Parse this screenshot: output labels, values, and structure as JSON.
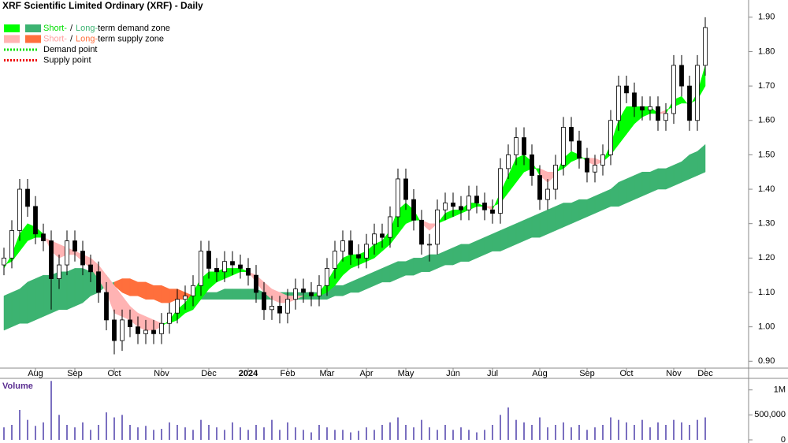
{
  "chart_data": {
    "type": "candlestick",
    "title": "XRF Scientific Limited Ordinary (XRF) - Daily",
    "legend": [
      {
        "kind": "zone",
        "swatches": [
          "#00ff00",
          "#3cb371"
        ],
        "parts": [
          {
            "text": "Short-",
            "color": "#00dd00"
          },
          {
            "text": "/"
          },
          {
            "text": "Long-",
            "color": "#3cb371"
          },
          {
            "text": "term demand zone"
          }
        ]
      },
      {
        "kind": "zone",
        "swatches": [
          "#ffb3b3",
          "#ff6f3c"
        ],
        "parts": [
          {
            "text": "Short-",
            "color": "#ffa0a0"
          },
          {
            "text": "/"
          },
          {
            "text": "Long-",
            "color": "#ff6f3c"
          },
          {
            "text": "term supply zone"
          }
        ]
      },
      {
        "kind": "point",
        "swatches": [
          "#00dd00"
        ],
        "parts": [
          {
            "text": "Demand point"
          }
        ]
      },
      {
        "kind": "point",
        "swatches": [
          "#ee0000"
        ],
        "parts": [
          {
            "text": "Supply point"
          }
        ]
      }
    ],
    "categories": [
      null,
      null,
      null,
      null,
      "Aug",
      null,
      null,
      null,
      null,
      "Sep",
      null,
      null,
      null,
      null,
      "Oct",
      null,
      null,
      null,
      null,
      null,
      "Nov",
      null,
      null,
      null,
      null,
      null,
      "Dec",
      null,
      null,
      null,
      null,
      "2024",
      null,
      null,
      null,
      null,
      "Feb",
      null,
      null,
      null,
      null,
      "Mar",
      null,
      null,
      null,
      null,
      "Apr",
      null,
      null,
      null,
      null,
      "May",
      null,
      null,
      null,
      null,
      null,
      "Jun",
      null,
      null,
      null,
      null,
      "Jul",
      null,
      null,
      null,
      null,
      null,
      "Aug",
      null,
      null,
      null,
      null,
      null,
      "Sep",
      null,
      null,
      null,
      null,
      "Oct",
      null,
      null,
      null,
      null,
      null,
      "Nov",
      null,
      null,
      null,
      "Dec"
    ],
    "open": [
      1.18,
      1.2,
      1.28,
      1.4,
      1.35,
      1.27,
      1.25,
      1.14,
      1.18,
      1.25,
      1.22,
      1.18,
      1.16,
      1.1,
      1.02,
      0.96,
      1.02,
      1.0,
      0.98,
      0.99,
      0.98,
      1.01,
      1.04,
      1.08,
      1.09,
      1.12,
      1.22,
      1.17,
      1.16,
      1.19,
      1.18,
      1.17,
      1.15,
      1.1,
      1.05,
      1.06,
      1.04,
      1.08,
      1.11,
      1.1,
      1.09,
      1.12,
      1.17,
      1.22,
      1.25,
      1.21,
      1.2,
      1.24,
      1.27,
      1.26,
      1.32,
      1.43,
      1.37,
      1.31,
      1.24,
      1.24,
      1.34,
      1.36,
      1.35,
      1.34,
      1.38,
      1.36,
      1.34,
      1.33,
      1.46,
      1.5,
      1.55,
      1.5,
      1.44,
      1.37,
      1.4,
      1.47,
      1.58,
      1.54,
      1.49,
      1.45,
      1.47,
      1.5,
      1.6,
      1.7,
      1.68,
      1.64,
      1.63,
      1.64,
      1.6,
      1.62,
      1.76,
      1.7,
      1.6,
      1.76
    ],
    "high": [
      1.23,
      1.31,
      1.43,
      1.43,
      1.38,
      1.3,
      1.28,
      1.21,
      1.28,
      1.28,
      1.25,
      1.21,
      1.19,
      1.13,
      1.05,
      1.05,
      1.05,
      1.03,
      1.02,
      1.02,
      1.04,
      1.07,
      1.11,
      1.12,
      1.15,
      1.25,
      1.25,
      1.2,
      1.22,
      1.22,
      1.21,
      1.2,
      1.18,
      1.13,
      1.09,
      1.09,
      1.11,
      1.14,
      1.14,
      1.13,
      1.15,
      1.2,
      1.25,
      1.28,
      1.28,
      1.24,
      1.27,
      1.3,
      1.3,
      1.35,
      1.46,
      1.46,
      1.4,
      1.34,
      1.27,
      1.37,
      1.39,
      1.39,
      1.38,
      1.41,
      1.41,
      1.39,
      1.37,
      1.49,
      1.53,
      1.58,
      1.58,
      1.53,
      1.47,
      1.43,
      1.5,
      1.61,
      1.61,
      1.57,
      1.52,
      1.5,
      1.53,
      1.63,
      1.73,
      1.73,
      1.71,
      1.67,
      1.67,
      1.67,
      1.65,
      1.79,
      1.79,
      1.73,
      1.79,
      1.9
    ],
    "low": [
      1.15,
      1.17,
      1.25,
      1.32,
      1.24,
      1.22,
      1.05,
      1.11,
      1.15,
      1.19,
      1.15,
      1.13,
      1.07,
      0.99,
      0.92,
      0.93,
      0.97,
      0.95,
      0.95,
      0.95,
      0.95,
      0.98,
      1.01,
      1.05,
      1.06,
      1.09,
      1.14,
      1.13,
      1.13,
      1.15,
      1.14,
      1.12,
      1.07,
      1.02,
      1.02,
      1.01,
      1.01,
      1.05,
      1.07,
      1.06,
      1.06,
      1.09,
      1.14,
      1.19,
      1.18,
      1.17,
      1.17,
      1.21,
      1.23,
      1.23,
      1.29,
      1.34,
      1.28,
      1.21,
      1.19,
      1.21,
      1.31,
      1.32,
      1.31,
      1.31,
      1.33,
      1.31,
      1.3,
      1.3,
      1.43,
      1.47,
      1.47,
      1.41,
      1.34,
      1.34,
      1.37,
      1.44,
      1.51,
      1.46,
      1.42,
      1.42,
      1.44,
      1.47,
      1.57,
      1.65,
      1.61,
      1.6,
      1.6,
      1.57,
      1.57,
      1.59,
      1.67,
      1.57,
      1.57,
      1.73
    ],
    "close": [
      1.2,
      1.28,
      1.4,
      1.35,
      1.27,
      1.25,
      1.14,
      1.18,
      1.25,
      1.22,
      1.18,
      1.16,
      1.1,
      1.02,
      0.96,
      1.02,
      1.0,
      0.98,
      0.99,
      0.98,
      1.01,
      1.04,
      1.08,
      1.09,
      1.12,
      1.22,
      1.17,
      1.16,
      1.19,
      1.18,
      1.17,
      1.15,
      1.1,
      1.05,
      1.06,
      1.04,
      1.08,
      1.11,
      1.1,
      1.09,
      1.12,
      1.17,
      1.22,
      1.25,
      1.21,
      1.2,
      1.24,
      1.27,
      1.26,
      1.32,
      1.43,
      1.37,
      1.31,
      1.24,
      1.24,
      1.34,
      1.36,
      1.35,
      1.34,
      1.38,
      1.36,
      1.34,
      1.33,
      1.46,
      1.5,
      1.55,
      1.5,
      1.44,
      1.37,
      1.4,
      1.47,
      1.58,
      1.54,
      1.49,
      1.45,
      1.47,
      1.5,
      1.6,
      1.7,
      1.68,
      1.64,
      1.63,
      1.64,
      1.6,
      1.62,
      1.76,
      1.7,
      1.6,
      1.76,
      1.87
    ],
    "zones": {
      "long": {
        "demand_color": "#3cb371",
        "supply_color": "#ff6f3c",
        "fast": [
          1.09,
          1.1,
          1.11,
          1.13,
          1.14,
          1.15,
          1.15,
          1.16,
          1.16,
          1.17,
          1.17,
          1.16,
          1.16,
          1.15,
          1.12,
          1.1,
          1.09,
          1.09,
          1.08,
          1.08,
          1.07,
          1.07,
          1.08,
          1.08,
          1.09,
          1.1,
          1.1,
          1.1,
          1.11,
          1.11,
          1.11,
          1.11,
          1.11,
          1.1,
          1.1,
          1.1,
          1.1,
          1.1,
          1.1,
          1.1,
          1.1,
          1.11,
          1.12,
          1.12,
          1.13,
          1.14,
          1.15,
          1.16,
          1.17,
          1.18,
          1.19,
          1.19,
          1.2,
          1.2,
          1.21,
          1.21,
          1.22,
          1.23,
          1.24,
          1.24,
          1.25,
          1.26,
          1.27,
          1.28,
          1.29,
          1.3,
          1.31,
          1.32,
          1.33,
          1.34,
          1.35,
          1.36,
          1.36,
          1.37,
          1.37,
          1.38,
          1.39,
          1.4,
          1.42,
          1.43,
          1.44,
          1.45,
          1.45,
          1.46,
          1.46,
          1.47,
          1.48,
          1.5,
          1.51,
          1.53
        ],
        "slow": [
          0.99,
          1.0,
          1.01,
          1.01,
          1.02,
          1.03,
          1.04,
          1.05,
          1.05,
          1.06,
          1.07,
          1.09,
          1.1,
          1.12,
          1.13,
          1.14,
          1.14,
          1.13,
          1.13,
          1.12,
          1.12,
          1.11,
          1.11,
          1.1,
          1.09,
          1.08,
          1.08,
          1.08,
          1.08,
          1.08,
          1.08,
          1.08,
          1.08,
          1.08,
          1.08,
          1.08,
          1.08,
          1.08,
          1.08,
          1.08,
          1.08,
          1.08,
          1.09,
          1.09,
          1.1,
          1.1,
          1.11,
          1.12,
          1.13,
          1.13,
          1.14,
          1.15,
          1.15,
          1.16,
          1.16,
          1.17,
          1.18,
          1.18,
          1.19,
          1.19,
          1.2,
          1.21,
          1.22,
          1.22,
          1.23,
          1.24,
          1.25,
          1.26,
          1.26,
          1.27,
          1.28,
          1.29,
          1.3,
          1.31,
          1.32,
          1.33,
          1.34,
          1.35,
          1.35,
          1.36,
          1.37,
          1.38,
          1.39,
          1.4,
          1.4,
          1.41,
          1.42,
          1.43,
          1.44,
          1.45
        ]
      },
      "short": {
        "demand_color": "#00ff00",
        "supply_color": "#ffb3b3",
        "fast": [
          1.17,
          1.21,
          1.27,
          1.3,
          1.29,
          1.27,
          1.22,
          1.2,
          1.21,
          1.21,
          1.19,
          1.17,
          1.14,
          1.1,
          1.04,
          1.03,
          1.02,
          1.0,
          0.99,
          0.99,
          1.0,
          1.02,
          1.05,
          1.07,
          1.1,
          1.14,
          1.16,
          1.16,
          1.17,
          1.17,
          1.17,
          1.16,
          1.13,
          1.1,
          1.08,
          1.07,
          1.07,
          1.08,
          1.09,
          1.09,
          1.1,
          1.13,
          1.17,
          1.2,
          1.21,
          1.21,
          1.22,
          1.24,
          1.25,
          1.28,
          1.34,
          1.36,
          1.34,
          1.3,
          1.28,
          1.3,
          1.33,
          1.34,
          1.34,
          1.36,
          1.36,
          1.35,
          1.34,
          1.39,
          1.44,
          1.49,
          1.5,
          1.48,
          1.44,
          1.42,
          1.44,
          1.49,
          1.51,
          1.5,
          1.48,
          1.47,
          1.48,
          1.53,
          1.6,
          1.64,
          1.64,
          1.64,
          1.64,
          1.62,
          1.62,
          1.66,
          1.67,
          1.64,
          1.68,
          1.76
        ],
        "slow": [
          1.18,
          1.19,
          1.22,
          1.25,
          1.26,
          1.26,
          1.25,
          1.24,
          1.23,
          1.22,
          1.21,
          1.2,
          1.18,
          1.15,
          1.12,
          1.09,
          1.06,
          1.04,
          1.03,
          1.02,
          1.01,
          1.01,
          1.02,
          1.04,
          1.05,
          1.08,
          1.11,
          1.13,
          1.14,
          1.15,
          1.16,
          1.16,
          1.15,
          1.13,
          1.11,
          1.1,
          1.09,
          1.09,
          1.09,
          1.09,
          1.09,
          1.1,
          1.12,
          1.15,
          1.17,
          1.18,
          1.19,
          1.2,
          1.22,
          1.24,
          1.27,
          1.3,
          1.31,
          1.31,
          1.3,
          1.3,
          1.31,
          1.32,
          1.33,
          1.34,
          1.35,
          1.35,
          1.35,
          1.36,
          1.39,
          1.42,
          1.45,
          1.46,
          1.46,
          1.45,
          1.45,
          1.46,
          1.48,
          1.49,
          1.49,
          1.49,
          1.48,
          1.5,
          1.53,
          1.56,
          1.59,
          1.61,
          1.62,
          1.62,
          1.63,
          1.64,
          1.65,
          1.65,
          1.66,
          1.7
        ]
      }
    },
    "up_color": "#ffffff",
    "down_color": "#000000",
    "ylim": [
      0.88,
      1.95
    ],
    "yticks": [
      {
        "value": 0.9,
        "label": "0.90"
      },
      {
        "value": 1.0,
        "label": "1.00"
      },
      {
        "value": 1.1,
        "label": "1.10"
      },
      {
        "value": 1.2,
        "label": "1.20"
      },
      {
        "value": 1.3,
        "label": "1.30"
      },
      {
        "value": 1.4,
        "label": "1.40"
      },
      {
        "value": 1.5,
        "label": "1.50"
      },
      {
        "value": 1.6,
        "label": "1.60"
      },
      {
        "value": 1.7,
        "label": "1.70"
      },
      {
        "value": 1.8,
        "label": "1.80"
      },
      {
        "value": 1.9,
        "label": "1.90"
      }
    ],
    "volume": {
      "label": "Volume",
      "color": "#7a6fc0",
      "values": [
        250000,
        300000,
        600000,
        400000,
        280000,
        350000,
        1180000,
        500000,
        300000,
        250000,
        350000,
        200000,
        300000,
        550000,
        450000,
        500000,
        300000,
        250000,
        280000,
        200000,
        220000,
        350000,
        300000,
        250000,
        200000,
        400000,
        300000,
        250000,
        200000,
        350000,
        250000,
        200000,
        300000,
        250000,
        400000,
        200000,
        350000,
        250000,
        200000,
        150000,
        300000,
        250000,
        200000,
        200000,
        150000,
        180000,
        250000,
        200000,
        300000,
        350000,
        450000,
        300000,
        250000,
        400000,
        250000,
        200000,
        300000,
        200000,
        250000,
        200000,
        150000,
        200000,
        300000,
        500000,
        650000,
        400000,
        350000,
        300000,
        450000,
        250000,
        300000,
        350000,
        250000,
        300000,
        200000,
        250000,
        300000,
        450000,
        400000,
        350000,
        300000,
        400000,
        250000,
        350000,
        300000,
        400000,
        350000,
        300000,
        400000,
        450000
      ],
      "ylim": [
        0,
        1200000
      ],
      "yticks": [
        0,
        {
          "value": 500000,
          "label": "500,000"
        },
        {
          "value": 1000000,
          "label": "1M"
        }
      ]
    }
  }
}
